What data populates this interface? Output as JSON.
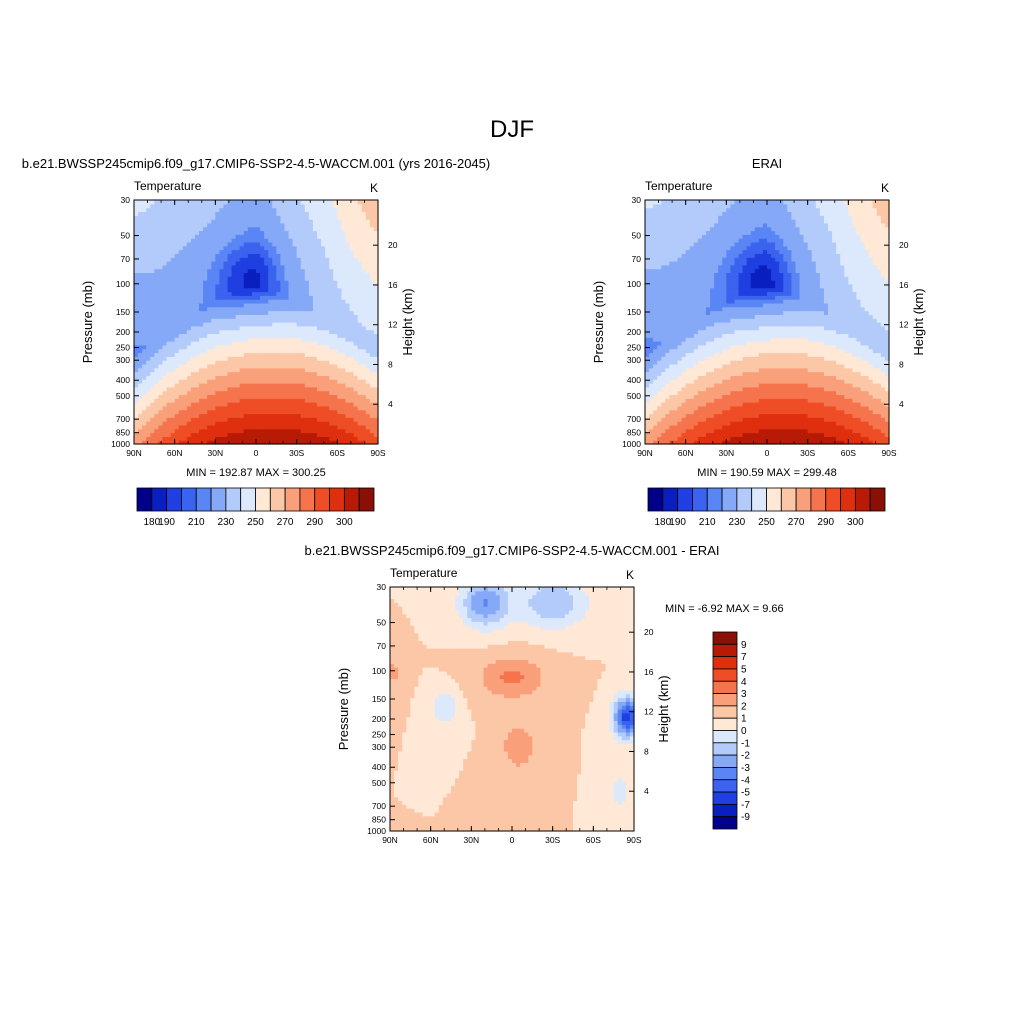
{
  "figure_title": "DJF",
  "colors": {
    "abs_palette": [
      "#00008b",
      "#0a1fbf",
      "#1f3fe0",
      "#3a63ef",
      "#5a86f5",
      "#85a8f7",
      "#b3cbfa",
      "#dce9fc",
      "#ffe8d6",
      "#fcc7a7",
      "#f9a07b",
      "#f5744d",
      "#ee4d25",
      "#de2f0f",
      "#b71b06",
      "#8a0f05"
    ],
    "diff_palette": [
      "#00008b",
      "#0a1fbf",
      "#1f3fe0",
      "#3a63ef",
      "#5a86f5",
      "#85a8f7",
      "#b3cbfa",
      "#dce9fc",
      "#ffe8d6",
      "#fcc7a7",
      "#f9a07b",
      "#f5744d",
      "#ee4d25",
      "#de2f0f",
      "#b71b06",
      "#8a0f05"
    ]
  },
  "chart_data": [
    {
      "type": "heatmap",
      "title": "b.e21.BWSSP245cmip6.f09_g17.CMIP6-SSP2-4.5-WACCM.001 (yrs 2016-2045)",
      "variable": "Temperature",
      "units": "K",
      "xlabel": "",
      "ylabel": "Pressure (mb)",
      "ylabel_right": "Height (km)",
      "x_ticks": [
        "90N",
        "60N",
        "30N",
        "0",
        "30S",
        "60S",
        "90S"
      ],
      "y_ticks": [
        "30",
        "50",
        "70",
        "100",
        "150",
        "200",
        "250",
        "300",
        "400",
        "500",
        "700",
        "850",
        "1000"
      ],
      "y_right_ticks": [
        "20",
        "16",
        "12",
        "8",
        "4"
      ],
      "yscale": "log",
      "ylim": [
        1000,
        30
      ],
      "xlim": [
        90,
        -90
      ],
      "stats": "MIN = 192.87  MAX = 300.25",
      "colorbar": {
        "orientation": "horizontal",
        "labels": [
          "180",
          "190",
          "210",
          "230",
          "250",
          "270",
          "290",
          "300"
        ]
      }
    },
    {
      "type": "heatmap",
      "title": "ERAI",
      "variable": "Temperature",
      "units": "K",
      "xlabel": "",
      "ylabel": "Pressure (mb)",
      "ylabel_right": "Height (km)",
      "x_ticks": [
        "90N",
        "60N",
        "30N",
        "0",
        "30S",
        "60S",
        "90S"
      ],
      "y_ticks": [
        "30",
        "50",
        "70",
        "100",
        "150",
        "200",
        "250",
        "300",
        "400",
        "500",
        "700",
        "850",
        "1000"
      ],
      "y_right_ticks": [
        "20",
        "16",
        "12",
        "8",
        "4"
      ],
      "yscale": "log",
      "ylim": [
        1000,
        30
      ],
      "xlim": [
        90,
        -90
      ],
      "stats": "MIN = 190.59  MAX = 299.48",
      "colorbar": {
        "orientation": "horizontal",
        "labels": [
          "180",
          "190",
          "210",
          "230",
          "250",
          "270",
          "290",
          "300"
        ]
      }
    },
    {
      "type": "heatmap",
      "title": "b.e21.BWSSP245cmip6.f09_g17.CMIP6-SSP2-4.5-WACCM.001 - ERAI",
      "variable": "Temperature",
      "units": "K",
      "xlabel": "",
      "ylabel": "Pressure (mb)",
      "ylabel_right": "Height (km)",
      "x_ticks": [
        "90N",
        "60N",
        "30N",
        "0",
        "30S",
        "60S",
        "90S"
      ],
      "y_ticks": [
        "30",
        "50",
        "70",
        "100",
        "150",
        "200",
        "250",
        "300",
        "400",
        "500",
        "700",
        "850",
        "1000"
      ],
      "y_right_ticks": [
        "20",
        "16",
        "12",
        "8",
        "4"
      ],
      "yscale": "log",
      "ylim": [
        1000,
        30
      ],
      "xlim": [
        90,
        -90
      ],
      "stats": "MIN =  -6.92  MAX =   9.66",
      "colorbar": {
        "orientation": "vertical",
        "labels": [
          "9",
          "7",
          "5",
          "4",
          "3",
          "2",
          "1",
          "0",
          "-1",
          "-2",
          "-3",
          "-4",
          "-5",
          "-7",
          "-9"
        ]
      }
    }
  ]
}
